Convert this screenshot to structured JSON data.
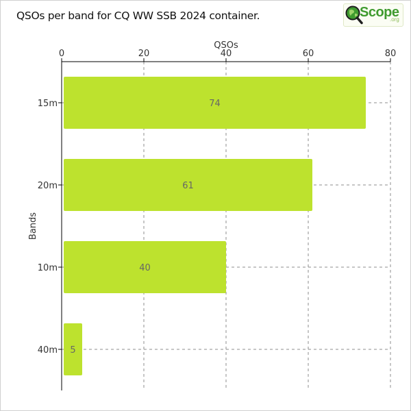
{
  "title": "QSOs per band for CQ WW SSB 2024 container.",
  "logo": {
    "brand": "Scope",
    "suffix": ".org"
  },
  "colors": {
    "bar": "#bde22e",
    "bar_label": "#666666",
    "axis": "#000000",
    "grid": "#8c8c8c",
    "logo_green": "#3f9b2f"
  },
  "chart_data": {
    "type": "bar",
    "orientation": "horizontal",
    "title": "QSOs per band for CQ WW SSB 2024 container.",
    "xlabel": "QSOs",
    "ylabel": "Bands",
    "x_axis_position": "top",
    "xlim": [
      0,
      80
    ],
    "xticks": [
      0,
      20,
      40,
      60,
      80
    ],
    "categories": [
      "15m",
      "20m",
      "10m",
      "40m"
    ],
    "values": [
      74,
      61,
      40,
      5
    ],
    "data_labels": [
      "74",
      "61",
      "40",
      "5"
    ],
    "grid": true,
    "legend": false
  }
}
